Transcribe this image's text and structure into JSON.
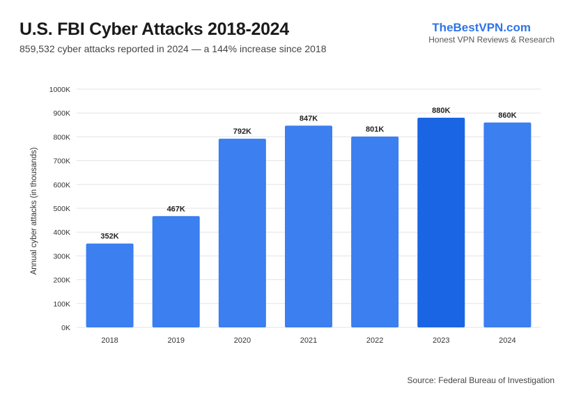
{
  "header": {
    "title": "U.S. FBI Cyber Attacks 2018-2024",
    "subtitle": "859,532 cyber attacks reported in 2024 — a 144% increase since 2018"
  },
  "brand": {
    "name": "TheBestVPN.com",
    "tagline": "Honest VPN Reviews & Research"
  },
  "footer": {
    "source": "Source: Federal Bureau of Investigation"
  },
  "colors": {
    "bar": "#3b7ff0",
    "bar_highlight": "#1a65e3",
    "grid": "#e3e3e3",
    "brand": "#2f74e6"
  },
  "chart_data": {
    "type": "bar",
    "title": "U.S. FBI Cyber Attacks 2018-2024",
    "xlabel": "",
    "ylabel": "Annual cyber attacks (in thousands)",
    "categories": [
      "2018",
      "2019",
      "2020",
      "2021",
      "2022",
      "2023",
      "2024"
    ],
    "values": [
      352,
      467,
      792,
      847,
      801,
      880,
      860
    ],
    "data_labels": [
      "352K",
      "467K",
      "792K",
      "847K",
      "801K",
      "880K",
      "860K"
    ],
    "highlight_index": 5,
    "ylim": [
      0,
      1000
    ],
    "yticks": [
      0,
      100,
      200,
      300,
      400,
      500,
      600,
      700,
      800,
      900,
      1000
    ],
    "ytick_labels": [
      "0K",
      "100K",
      "200K",
      "300K",
      "400K",
      "500K",
      "600K",
      "700K",
      "800K",
      "900K",
      "1000K"
    ],
    "grid": true,
    "legend": "none"
  }
}
